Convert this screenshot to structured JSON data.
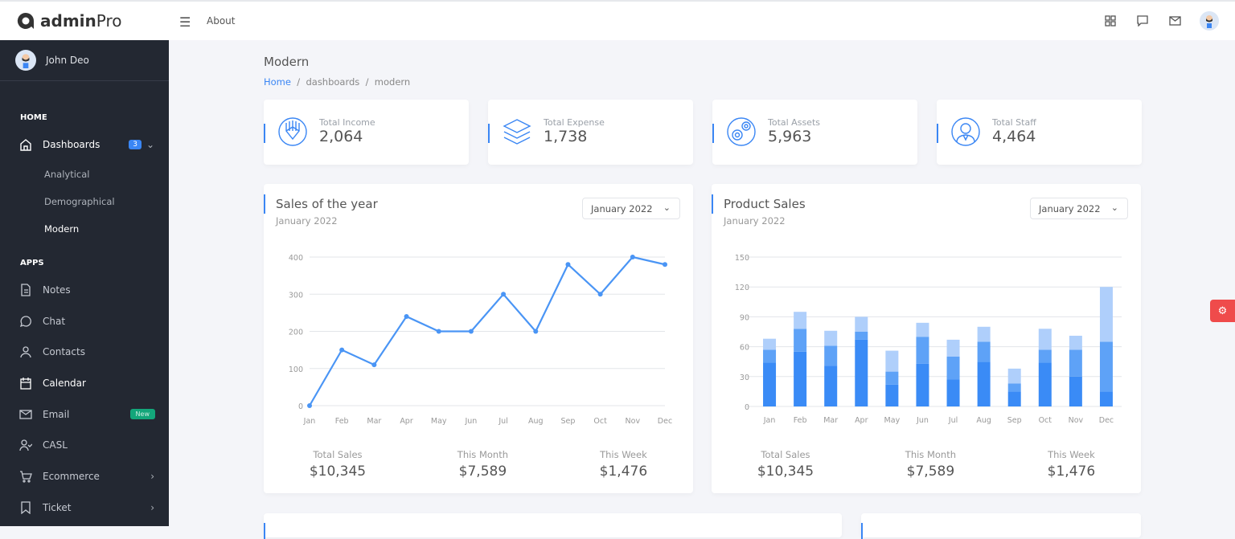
{
  "header": {
    "brand_bold": "admin",
    "brand_light": "Pro",
    "about": "About",
    "icons": [
      "apps-icon",
      "chat-icon",
      "mail-icon",
      "avatar"
    ]
  },
  "sidebar": {
    "user": "John Deo",
    "sections": [
      {
        "title": "HOME"
      },
      {
        "title": "APPS"
      }
    ],
    "dashboards": {
      "label": "Dashboards",
      "badge": "3",
      "sub": [
        "Analytical",
        "Demographical",
        "Modern"
      ]
    },
    "apps": [
      {
        "label": "Notes",
        "icon": "note-icon"
      },
      {
        "label": "Chat",
        "icon": "chat-icon"
      },
      {
        "label": "Contacts",
        "icon": "user-icon"
      },
      {
        "label": "Calendar",
        "icon": "calendar-icon"
      },
      {
        "label": "Email",
        "icon": "mail-icon",
        "badge": "New"
      },
      {
        "label": "CASL",
        "icon": "user-check-icon"
      },
      {
        "label": "Ecommerce",
        "icon": "cart-icon"
      },
      {
        "label": "Ticket",
        "icon": "bookmark-icon"
      }
    ]
  },
  "page": {
    "title": "Modern",
    "breadcrumb": [
      "Home",
      "dashboards",
      "modern"
    ]
  },
  "stats": [
    {
      "label": "Total Income",
      "value": "2,064"
    },
    {
      "label": "Total Expense",
      "value": "1,738"
    },
    {
      "label": "Total Assets",
      "value": "5,963"
    },
    {
      "label": "Total Staff",
      "value": "4,464"
    }
  ],
  "colors": {
    "accent": "#3a86f4",
    "sidebar": "#232832",
    "bar1": "#3a8bf6",
    "bar2": "#5ea2f7",
    "bar3": "#afcffb"
  },
  "cards": [
    {
      "title": "Sales of the year",
      "subtitle": "January 2022",
      "select": "January 2022",
      "summary": [
        {
          "label": "Total Sales",
          "value": "$10,345"
        },
        {
          "label": "This Month",
          "value": "$7,589"
        },
        {
          "label": "This Week",
          "value": "$1,476"
        }
      ]
    },
    {
      "title": "Product Sales",
      "subtitle": "January 2022",
      "select": "January 2022",
      "summary": [
        {
          "label": "Total Sales",
          "value": "$10,345"
        },
        {
          "label": "This Month",
          "value": "$7,589"
        },
        {
          "label": "This Week",
          "value": "$1,476"
        }
      ]
    }
  ],
  "chart_data": [
    {
      "type": "line",
      "categories": [
        "Jan",
        "Feb",
        "Mar",
        "Apr",
        "May",
        "Jun",
        "Jul",
        "Aug",
        "Sep",
        "Oct",
        "Nov",
        "Dec"
      ],
      "values": [
        0,
        150,
        110,
        240,
        200,
        200,
        300,
        200,
        380,
        300,
        400,
        380
      ],
      "ylim": [
        0,
        400
      ],
      "yticks": [
        0,
        100,
        200,
        300,
        400
      ],
      "grid": true
    },
    {
      "type": "bar",
      "stacked": true,
      "categories": [
        "Jan",
        "Feb",
        "Mar",
        "Apr",
        "May",
        "Jun",
        "Jul",
        "Aug",
        "Sep",
        "Oct",
        "Nov",
        "Dec"
      ],
      "series": [
        {
          "values": [
            44,
            55,
            41,
            67,
            22,
            43,
            27,
            45,
            15,
            44,
            30,
            15
          ]
        },
        {
          "values": [
            13,
            23,
            20,
            8,
            13,
            27,
            23,
            20,
            8,
            13,
            27,
            50
          ]
        },
        {
          "values": [
            11,
            17,
            15,
            15,
            21,
            14,
            17,
            15,
            15,
            21,
            14,
            55
          ]
        }
      ],
      "ylim": [
        0,
        150
      ],
      "yticks": [
        0,
        30,
        60,
        90,
        120,
        150
      ],
      "grid": true
    }
  ]
}
